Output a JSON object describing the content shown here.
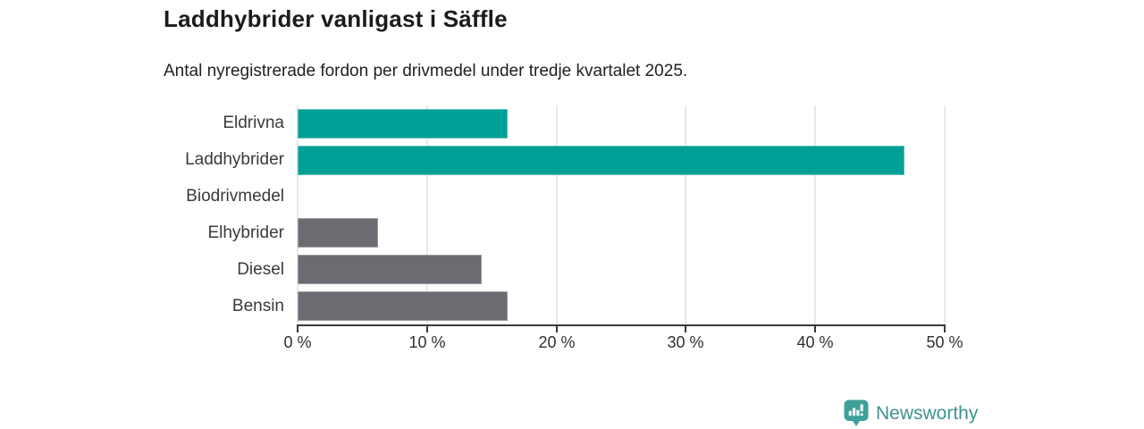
{
  "header": {
    "title": "Laddhybrider vanligast i Säffle",
    "subtitle": "Antal nyregistrerade fordon per drivmedel under tredje kvartalet 2025."
  },
  "chart_data": {
    "type": "bar",
    "orientation": "horizontal",
    "title": "Laddhybrider vanligast i Säffle",
    "subtitle": "Antal nyregistrerade fordon per drivmedel under tredje kvartalet 2025.",
    "categories": [
      "Eldrivna",
      "Laddhybrider",
      "Biodrivmedel",
      "Elhybrider",
      "Diesel",
      "Bensin"
    ],
    "values": [
      16.2,
      46.9,
      0,
      6.2,
      14.2,
      16.2
    ],
    "unit": "%",
    "xlabel": "",
    "ylabel": "",
    "xlim": [
      0,
      50
    ],
    "x_ticks": [
      0,
      10,
      20,
      30,
      40,
      50
    ],
    "x_tick_labels": [
      "0 %",
      "10 %",
      "20 %",
      "30 %",
      "40 %",
      "50 %"
    ],
    "grid": "vertical-only",
    "legend": "none",
    "bar_colors": [
      "#00A096",
      "#00A096",
      "#6B6B71",
      "#6B6B71",
      "#6B6B71",
      "#6B6B71"
    ]
  },
  "colors": {
    "accent_teal": "#00A096",
    "neutral_gray": "#6B6B71",
    "axis": "#3A3A3A",
    "gridline": "#E9E9E9",
    "logo_teal": "#3E938D",
    "logo_icon_teal": "#3FA09A"
  },
  "footer": {
    "logo_text": "Newsworthy"
  }
}
